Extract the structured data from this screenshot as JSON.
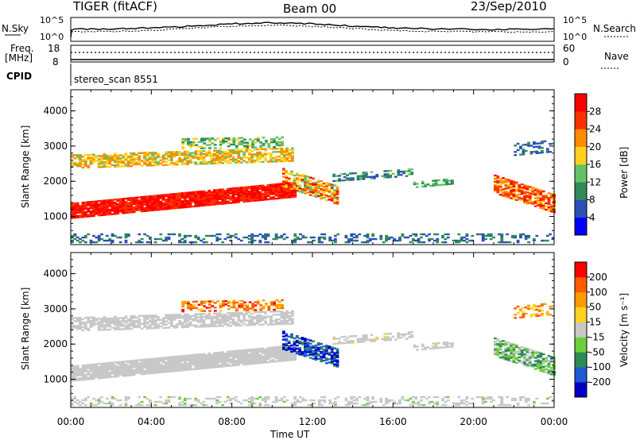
{
  "header": {
    "title": "TIGER (fitACF)",
    "beam": "Beam 00",
    "date": "23/Sep/2010"
  },
  "top_panels": {
    "nsky_label": "N.Sky",
    "nsearch_label": "N.Search",
    "nsky_ticks": [
      "10^5",
      "10^0"
    ],
    "freq_label_line1": "Freq.",
    "freq_label_line2": "[MHz]",
    "freq_ticks": [
      "18",
      "8"
    ],
    "nave_label": "Nave",
    "nave_ticks": [
      "60",
      "0"
    ],
    "cpid_label": "CPID",
    "cpid_value": "stereo_scan 8551"
  },
  "chart_data": [
    {
      "type": "heatmap",
      "name": "power",
      "xlabel": "",
      "ylabel": "Slant Range [km]",
      "x_ticks": [
        "00:00",
        "04:00",
        "08:00",
        "12:00",
        "16:00",
        "20:00",
        "00:00"
      ],
      "x_range_hours": [
        0,
        24
      ],
      "y_ticks": [
        "1000",
        "2000",
        "3000",
        "4000"
      ],
      "ylim": [
        200,
        4600
      ],
      "colorbar_label": "Power [dB]",
      "colorbar_ticks": [
        "28",
        "24",
        "20",
        "16",
        "12",
        "8",
        "4"
      ],
      "colorbar_range": [
        0,
        32
      ],
      "colors": [
        "#0000ff",
        "#2d4fb8",
        "#2e8b57",
        "#66c266",
        "#ffd21e",
        "#ff8c00",
        "#ff3000",
        "#ff0000"
      ]
    },
    {
      "type": "heatmap",
      "name": "velocity",
      "xlabel": "Time UT",
      "ylabel": "Slant Range [km]",
      "x_ticks": [
        "00:00",
        "04:00",
        "08:00",
        "12:00",
        "16:00",
        "20:00",
        "00:00"
      ],
      "x_range_hours": [
        0,
        24
      ],
      "y_ticks": [
        "1000",
        "2000",
        "3000",
        "4000"
      ],
      "ylim": [
        200,
        4600
      ],
      "colorbar_label": "Velocity [m s⁻¹]",
      "colorbar_ticks": [
        "200",
        "100",
        "50",
        "15",
        "-15",
        "-50",
        "-100",
        "-200"
      ],
      "colorbar_range": [
        -250,
        250
      ],
      "colors": [
        "#0000c8",
        "#1f5ad2",
        "#2e8b57",
        "#6ccf3c",
        "#c8c8c8",
        "#ffd21e",
        "#ff9a00",
        "#ff5a00",
        "#ff0000"
      ]
    }
  ]
}
